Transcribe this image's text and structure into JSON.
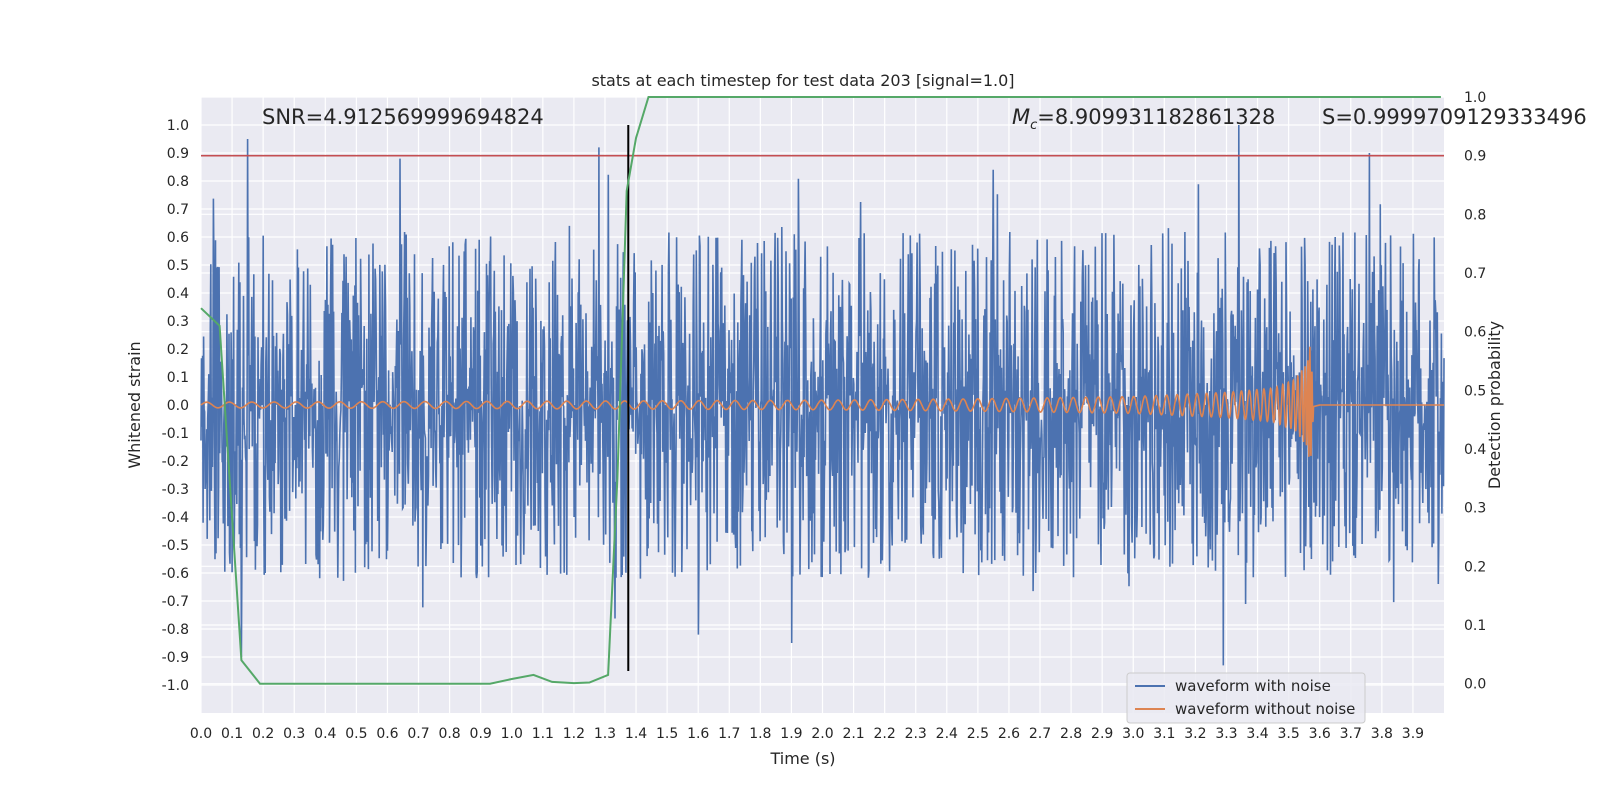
{
  "chart_data": {
    "type": "line",
    "title": "stats at each timestep for test data 203 [signal=1.0]",
    "xlabel": "Time (s)",
    "ylabel": "Whitened strain",
    "ylabel_right": "Detection probability",
    "xlim": [
      0.0,
      4.0
    ],
    "ylim": [
      -1.1,
      1.1
    ],
    "ylim_right": [
      -0.05,
      1.0
    ],
    "x_ticks": [
      "0.0",
      "0.1",
      "0.2",
      "0.3",
      "0.4",
      "0.5",
      "0.6",
      "0.7",
      "0.8",
      "0.9",
      "1.0",
      "1.1",
      "1.2",
      "1.3",
      "1.4",
      "1.5",
      "1.6",
      "1.7",
      "1.8",
      "1.9",
      "2.0",
      "2.1",
      "2.2",
      "2.3",
      "2.4",
      "2.5",
      "2.6",
      "2.7",
      "2.8",
      "2.9",
      "3.0",
      "3.1",
      "3.2",
      "3.3",
      "3.4",
      "3.5",
      "3.6",
      "3.7",
      "3.8",
      "3.9"
    ],
    "y_ticks": [
      "1.0",
      "0.9",
      "0.8",
      "0.7",
      "0.6",
      "0.5",
      "0.4",
      "0.3",
      "0.2",
      "0.1",
      "0.0",
      "-0.1",
      "-0.2",
      "-0.3",
      "-0.4",
      "-0.5",
      "-0.6",
      "-0.7",
      "-0.8",
      "-0.9",
      "-1.0"
    ],
    "y_ticks_right": [
      "1.0",
      "0.9",
      "0.8",
      "0.7",
      "0.6",
      "0.5",
      "0.4",
      "0.3",
      "0.2",
      "0.1",
      "0.0"
    ],
    "grid": true,
    "legend_position": "lower-right",
    "annotations": {
      "snr": "SNR=4.912569999694824",
      "mc_symbol": "M",
      "mc_subscript": "c",
      "mc_value": "=8.909931182861328",
      "s": "S=0.9999709129333496"
    },
    "series": [
      {
        "name": "waveform with noise",
        "color": "#4c72b0",
        "description": "dense noisy whitened strain, roughly within [-0.6, 0.6] with spikes",
        "notable_peaks": [
          [
            0.15,
            0.95
          ],
          [
            0.64,
            0.88
          ],
          [
            1.28,
            0.92
          ],
          [
            2.55,
            0.84
          ],
          [
            3.34,
            1.0
          ],
          [
            3.76,
            0.9
          ],
          [
            3.29,
            -0.93
          ],
          [
            0.13,
            -0.9
          ],
          [
            1.9,
            -0.85
          ],
          [
            1.6,
            -0.82
          ]
        ]
      },
      {
        "name": "waveform without noise",
        "color": "#dd8452",
        "description": "inspiral chirp growing in frequency and amplitude, merging near 3.57 s",
        "amplitude_envelope": [
          [
            0.0,
            0.01
          ],
          [
            1.0,
            0.013
          ],
          [
            2.0,
            0.017
          ],
          [
            2.5,
            0.022
          ],
          [
            3.0,
            0.03
          ],
          [
            3.3,
            0.045
          ],
          [
            3.45,
            0.06
          ],
          [
            3.52,
            0.09
          ],
          [
            3.56,
            0.15
          ],
          [
            3.57,
            0.22
          ],
          [
            3.58,
            0.03
          ],
          [
            3.6,
            0.0
          ]
        ],
        "merger_time": 3.57
      },
      {
        "name": "detection probability",
        "axis": "right",
        "color": "#55a868",
        "x": [
          0.0,
          0.06,
          0.13,
          0.19,
          0.5,
          0.8,
          0.93,
          1.0,
          1.07,
          1.13,
          1.2,
          1.25,
          1.31,
          1.34,
          1.37,
          1.4,
          1.44,
          1.6,
          2.0,
          3.0,
          3.99
        ],
        "y": [
          0.64,
          0.61,
          0.04,
          0.0,
          0.0,
          0.0,
          0.0,
          0.008,
          0.015,
          0.003,
          0.001,
          0.002,
          0.015,
          0.35,
          0.84,
          0.93,
          1.0,
          1.0,
          1.0,
          1.0,
          1.0
        ]
      }
    ],
    "reference_lines": [
      {
        "type": "horizontal",
        "axis": "right",
        "value": 0.9,
        "color": "#c44e52"
      },
      {
        "type": "vertical",
        "x": 1.375,
        "y_from": -0.95,
        "y_to": 1.0,
        "color": "#000000"
      }
    ]
  }
}
